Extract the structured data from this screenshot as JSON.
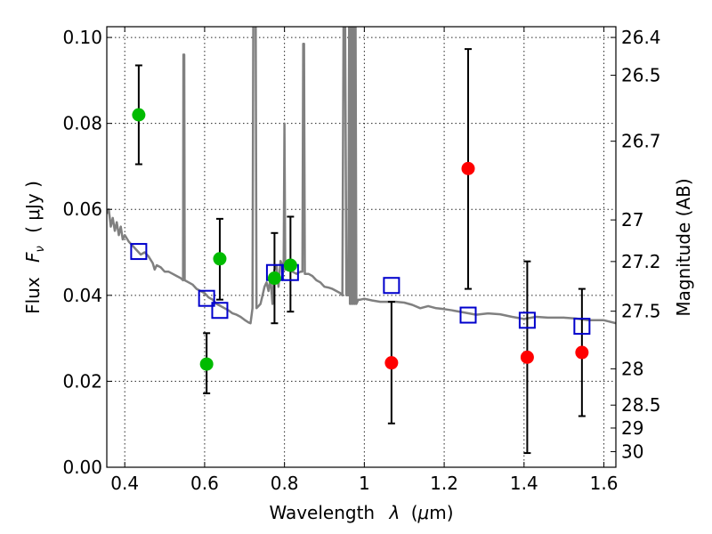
{
  "chart_data": {
    "type": "scatter",
    "xlabel_text": "Wavelength",
    "xlabel_symbol": "λ",
    "xlabel_unit_open": "(",
    "xlabel_unit_mu": "μ",
    "xlabel_unit_rest": "m)",
    "ylabel_text": "Flux",
    "ylabel_symbol_main": "F",
    "ylabel_symbol_sub": "ν",
    "ylabel_unit": "( μJy )",
    "y2label": "Magnitude (AB)",
    "xlim": [
      0.355,
      1.63
    ],
    "ylim": [
      0.0,
      0.1025
    ],
    "grid": true,
    "x_ticks": [
      0.4,
      0.6,
      0.8,
      1.0,
      1.2,
      1.4,
      1.6
    ],
    "x_tick_labels": [
      "0.4",
      "0.6",
      "0.8",
      "1",
      "1.2",
      "1.4",
      "1.6"
    ],
    "y_ticks": [
      0.0,
      0.02,
      0.04,
      0.06,
      0.08,
      0.1
    ],
    "y_tick_labels": [
      "0.00",
      "0.02",
      "0.04",
      "0.06",
      "0.08",
      "0.10"
    ],
    "y2_ticks": [
      {
        "mag": 26.4,
        "label": "26.4"
      },
      {
        "mag": 26.5,
        "label": "26.5"
      },
      {
        "mag": 26.7,
        "label": "26.7"
      },
      {
        "mag": 27.0,
        "label": "27"
      },
      {
        "mag": 27.2,
        "label": "27.2"
      },
      {
        "mag": 27.5,
        "label": "27.5"
      },
      {
        "mag": 28.0,
        "label": "28"
      },
      {
        "mag": 28.5,
        "label": "28.5"
      },
      {
        "mag": 29.0,
        "label": "29"
      },
      {
        "mag": 30.0,
        "label": "30"
      }
    ],
    "colors": {
      "green": "#00bb00",
      "red": "#ff0000",
      "square": "#0000cc",
      "sed": "#808080"
    },
    "series": [
      {
        "marker": "circle-green",
        "points": [
          {
            "x": 0.435,
            "y": 0.082,
            "ylo": 0.0705,
            "yhi": 0.0935
          },
          {
            "x": 0.605,
            "y": 0.024,
            "ylo": 0.0172,
            "yhi": 0.0312
          },
          {
            "x": 0.638,
            "y": 0.0485,
            "ylo": 0.039,
            "yhi": 0.0578
          },
          {
            "x": 0.775,
            "y": 0.044,
            "ylo": 0.0335,
            "yhi": 0.0545
          },
          {
            "x": 0.815,
            "y": 0.047,
            "ylo": 0.0362,
            "yhi": 0.0583
          }
        ]
      },
      {
        "marker": "circle-red",
        "points": [
          {
            "x": 1.068,
            "y": 0.0243,
            "ylo": 0.0102,
            "yhi": 0.0385
          },
          {
            "x": 1.26,
            "y": 0.0695,
            "ylo": 0.0415,
            "yhi": 0.0973
          },
          {
            "x": 1.408,
            "y": 0.0256,
            "ylo": 0.0033,
            "yhi": 0.0479
          },
          {
            "x": 1.545,
            "y": 0.0267,
            "ylo": 0.0119,
            "yhi": 0.0415
          }
        ]
      },
      {
        "marker": "square-blue",
        "points": [
          {
            "x": 0.435,
            "y": 0.0502
          },
          {
            "x": 0.605,
            "y": 0.0393
          },
          {
            "x": 0.638,
            "y": 0.0365
          },
          {
            "x": 0.775,
            "y": 0.0453
          },
          {
            "x": 0.815,
            "y": 0.0453
          },
          {
            "x": 1.068,
            "y": 0.0423
          },
          {
            "x": 1.26,
            "y": 0.0354
          },
          {
            "x": 1.408,
            "y": 0.0342
          },
          {
            "x": 1.545,
            "y": 0.0328
          }
        ]
      }
    ],
    "sed_model": {
      "type": "line",
      "points": [
        [
          0.355,
          0.059
        ],
        [
          0.36,
          0.06
        ],
        [
          0.365,
          0.056
        ],
        [
          0.37,
          0.058
        ],
        [
          0.375,
          0.055
        ],
        [
          0.38,
          0.057
        ],
        [
          0.385,
          0.054
        ],
        [
          0.39,
          0.056
        ],
        [
          0.395,
          0.053
        ],
        [
          0.4,
          0.054
        ],
        [
          0.41,
          0.0525
        ],
        [
          0.42,
          0.0515
        ],
        [
          0.43,
          0.0505
        ],
        [
          0.44,
          0.0495
        ],
        [
          0.45,
          0.05
        ],
        [
          0.46,
          0.049
        ],
        [
          0.47,
          0.0475
        ],
        [
          0.475,
          0.046
        ],
        [
          0.48,
          0.047
        ],
        [
          0.49,
          0.0465
        ],
        [
          0.5,
          0.0455
        ],
        [
          0.51,
          0.0455
        ],
        [
          0.52,
          0.045
        ],
        [
          0.53,
          0.0445
        ],
        [
          0.54,
          0.044
        ],
        [
          0.546,
          0.0435
        ],
        [
          0.547,
          0.096
        ],
        [
          0.549,
          0.096
        ],
        [
          0.55,
          0.0435
        ],
        [
          0.56,
          0.043
        ],
        [
          0.57,
          0.0425
        ],
        [
          0.58,
          0.0415
        ],
        [
          0.59,
          0.041
        ],
        [
          0.6,
          0.0405
        ],
        [
          0.61,
          0.0395
        ],
        [
          0.62,
          0.039
        ],
        [
          0.63,
          0.038
        ],
        [
          0.64,
          0.0375
        ],
        [
          0.65,
          0.037
        ],
        [
          0.66,
          0.0365
        ],
        [
          0.67,
          0.0358
        ],
        [
          0.68,
          0.0355
        ],
        [
          0.69,
          0.035
        ],
        [
          0.7,
          0.0343
        ],
        [
          0.71,
          0.0337
        ],
        [
          0.715,
          0.0335
        ],
        [
          0.72,
          0.037
        ],
        [
          0.722,
          0.103
        ],
        [
          0.728,
          0.103
        ],
        [
          0.73,
          0.037
        ],
        [
          0.735,
          0.0375
        ],
        [
          0.74,
          0.038
        ],
        [
          0.745,
          0.04
        ],
        [
          0.75,
          0.042
        ],
        [
          0.755,
          0.043
        ],
        [
          0.76,
          0.041
        ],
        [
          0.765,
          0.044
        ],
        [
          0.77,
          0.038
        ],
        [
          0.775,
          0.046
        ],
        [
          0.78,
          0.047
        ],
        [
          0.785,
          0.042
        ],
        [
          0.79,
          0.048
        ],
        [
          0.795,
          0.047
        ],
        [
          0.798,
          0.046
        ],
        [
          0.8,
          0.08
        ],
        [
          0.802,
          0.046
        ],
        [
          0.81,
          0.046
        ],
        [
          0.82,
          0.0455
        ],
        [
          0.83,
          0.045
        ],
        [
          0.84,
          0.0455
        ],
        [
          0.845,
          0.0455
        ],
        [
          0.847,
          0.0985
        ],
        [
          0.849,
          0.0985
        ],
        [
          0.851,
          0.045
        ],
        [
          0.86,
          0.045
        ],
        [
          0.87,
          0.0445
        ],
        [
          0.88,
          0.0435
        ],
        [
          0.89,
          0.043
        ],
        [
          0.9,
          0.042
        ],
        [
          0.91,
          0.0418
        ],
        [
          0.92,
          0.0415
        ],
        [
          0.93,
          0.041
        ],
        [
          0.94,
          0.0405
        ],
        [
          0.945,
          0.04
        ],
        [
          0.948,
          0.103
        ],
        [
          0.952,
          0.103
        ],
        [
          0.955,
          0.04
        ],
        [
          0.96,
          0.04
        ],
        [
          0.962,
          0.103
        ],
        [
          0.964,
          0.038
        ],
        [
          0.966,
          0.103
        ],
        [
          0.968,
          0.038
        ],
        [
          0.97,
          0.103
        ],
        [
          0.972,
          0.038
        ],
        [
          0.974,
          0.103
        ],
        [
          0.976,
          0.038
        ],
        [
          0.978,
          0.103
        ],
        [
          0.98,
          0.038
        ],
        [
          0.985,
          0.039
        ],
        [
          0.99,
          0.039
        ],
        [
          1.0,
          0.0392
        ],
        [
          1.02,
          0.0388
        ],
        [
          1.04,
          0.0385
        ],
        [
          1.06,
          0.0385
        ],
        [
          1.08,
          0.0385
        ],
        [
          1.1,
          0.0383
        ],
        [
          1.12,
          0.0378
        ],
        [
          1.14,
          0.037
        ],
        [
          1.16,
          0.0375
        ],
        [
          1.18,
          0.037
        ],
        [
          1.2,
          0.0368
        ],
        [
          1.22,
          0.0365
        ],
        [
          1.25,
          0.036
        ],
        [
          1.28,
          0.0355
        ],
        [
          1.31,
          0.0358
        ],
        [
          1.34,
          0.0356
        ],
        [
          1.37,
          0.035
        ],
        [
          1.4,
          0.0345
        ],
        [
          1.43,
          0.035
        ],
        [
          1.46,
          0.0348
        ],
        [
          1.5,
          0.0348
        ],
        [
          1.53,
          0.0346
        ],
        [
          1.56,
          0.0342
        ],
        [
          1.6,
          0.0342
        ],
        [
          1.63,
          0.0335
        ]
      ]
    }
  }
}
